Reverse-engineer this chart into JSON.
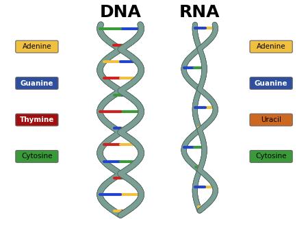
{
  "title_dna": "DNA",
  "title_rna": "RNA",
  "title_fontsize": 18,
  "title_fontweight": "bold",
  "background_color": "#ffffff",
  "left_legend": [
    {
      "label": "Adenine",
      "facecolor": "#f0c040",
      "textcolor": "#000000"
    },
    {
      "label": "Guanine",
      "facecolor": "#2e4f9e",
      "textcolor": "#ffffff"
    },
    {
      "label": "Thymine",
      "facecolor": "#a01010",
      "textcolor": "#ffffff"
    },
    {
      "label": "Cytosine",
      "facecolor": "#3a9a3a",
      "textcolor": "#000000"
    }
  ],
  "right_legend": [
    {
      "label": "Adenine",
      "facecolor": "#f0c040",
      "textcolor": "#000000"
    },
    {
      "label": "Guanine",
      "facecolor": "#2e4f9e",
      "textcolor": "#ffffff"
    },
    {
      "label": "Uracil",
      "facecolor": "#cc6820",
      "textcolor": "#000000"
    },
    {
      "label": "Cytosine",
      "facecolor": "#3a9a3a",
      "textcolor": "#000000"
    }
  ],
  "helix_color": "#7a9e94",
  "helix_edge_color": "#556e66",
  "base_colors_dna": [
    "#cc2222",
    "#f0c040",
    "#3a9a3a",
    "#2244cc",
    "#cc2222",
    "#f0c040",
    "#3a9a3a",
    "#2244cc",
    "#cc2222",
    "#f0c040",
    "#3a9a3a",
    "#2244cc"
  ],
  "base_colors_dna2": [
    "#f0c040",
    "#2244cc",
    "#cc2222",
    "#3a9a3a",
    "#f0c040",
    "#2244cc",
    "#cc2222",
    "#3a9a3a",
    "#f0c040",
    "#2244cc",
    "#cc2222",
    "#3a9a3a"
  ],
  "base_colors_rna": [
    "#cc6820",
    "#f0c040",
    "#3a9a3a",
    "#2244cc",
    "#cc6820",
    "#f0c040",
    "#3a9a3a",
    "#2244cc",
    "#cc6820",
    "#f0c040"
  ],
  "base_colors_rna2": [
    "#f0c040",
    "#2244cc",
    "#cc6820",
    "#3a9a3a",
    "#f0c040",
    "#2244cc",
    "#cc6820",
    "#3a9a3a",
    "#f0c040",
    "#2244cc"
  ]
}
